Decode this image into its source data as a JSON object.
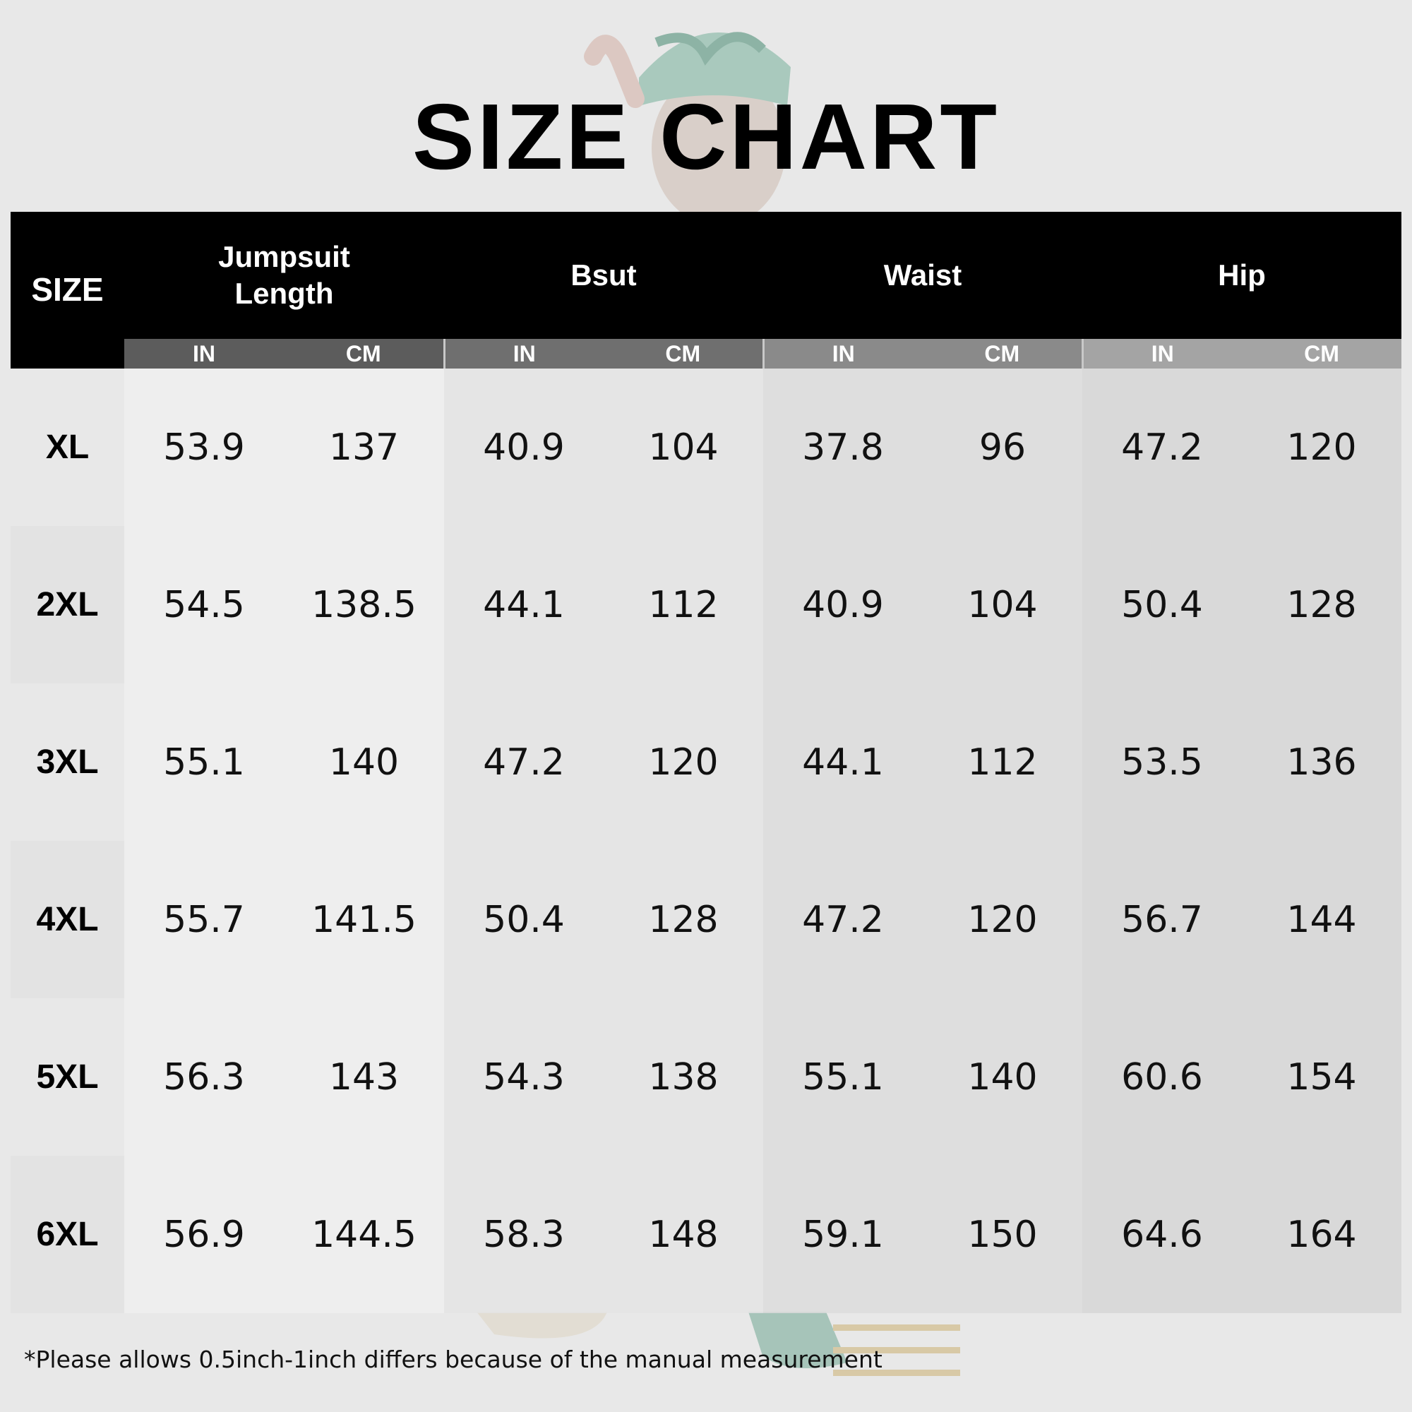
{
  "title": "SIZE CHART",
  "columns": {
    "size": "SIZE",
    "groups": [
      "Jumpsuit Length",
      "Bsut",
      "Waist",
      "Hip"
    ],
    "units": [
      "IN",
      "CM"
    ]
  },
  "rows": [
    {
      "size": "XL",
      "values": [
        "53.9",
        "137",
        "40.9",
        "104",
        "37.8",
        "96",
        "47.2",
        "120"
      ]
    },
    {
      "size": "2XL",
      "values": [
        "54.5",
        "138.5",
        "44.1",
        "112",
        "40.9",
        "104",
        "50.4",
        "128"
      ]
    },
    {
      "size": "3XL",
      "values": [
        "55.1",
        "140",
        "47.2",
        "120",
        "44.1",
        "112",
        "53.5",
        "136"
      ]
    },
    {
      "size": "4XL",
      "values": [
        "55.7",
        "141.5",
        "50.4",
        "128",
        "47.2",
        "120",
        "56.7",
        "144"
      ]
    },
    {
      "size": "5XL",
      "values": [
        "56.3",
        "143",
        "54.3",
        "138",
        "55.1",
        "140",
        "60.6",
        "154"
      ]
    },
    {
      "size": "6XL",
      "values": [
        "56.9",
        "144.5",
        "58.3",
        "148",
        "59.1",
        "150",
        "64.6",
        "164"
      ]
    }
  ],
  "footnote": "*Please allows 0.5inch-1inch differs because of the manual measurement",
  "colors": {
    "header_bg": "#000000",
    "header_text": "#ffffff",
    "table_bg": "#e6e6e6"
  }
}
